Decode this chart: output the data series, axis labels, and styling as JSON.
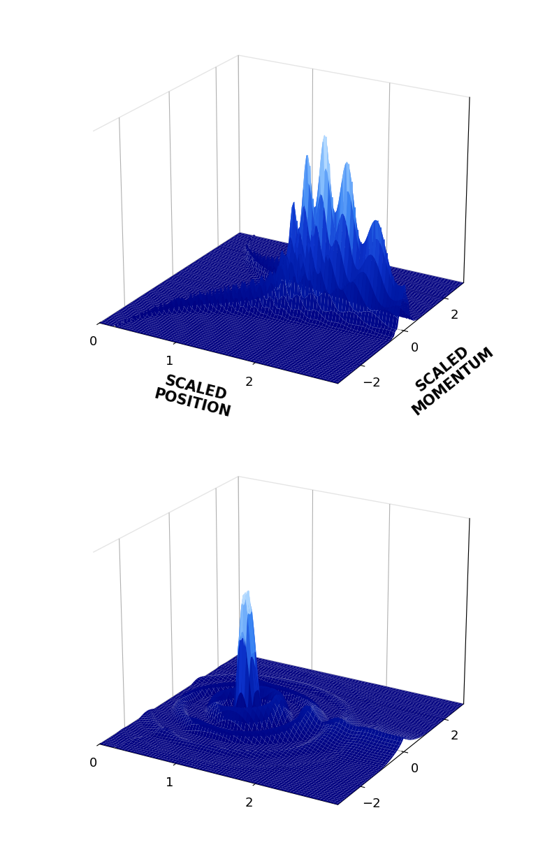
{
  "xlabel": "SCALED\nPOSITION",
  "ylabel": "SCALED\nMOMENTUM",
  "x_ticks": [
    0,
    1,
    2
  ],
  "y_ticks": [
    -2,
    0,
    2
  ],
  "bg_color": "#ffffff",
  "elev1": 22,
  "azim1": -60,
  "elev2": 22,
  "azim2": -60,
  "figsize": [
    8.0,
    12.19
  ],
  "dpi": 100,
  "font_size": 13,
  "label_font_size": 15
}
